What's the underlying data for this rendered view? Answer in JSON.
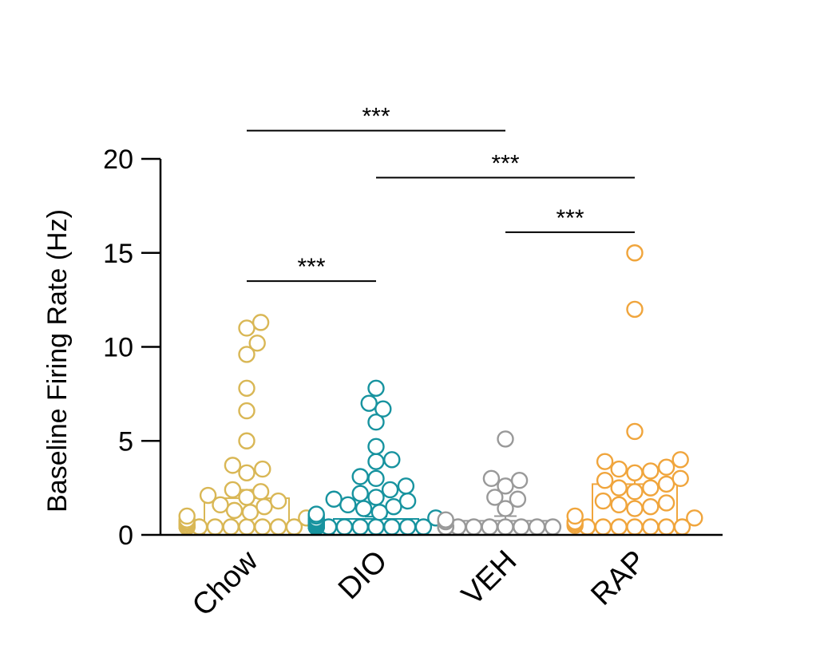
{
  "chart_data": {
    "type": "bar",
    "ylabel": "Baseline Firing Rate (Hz)",
    "ylim": [
      0,
      20
    ],
    "yticks": [
      "0",
      "5",
      "10",
      "15",
      "20"
    ],
    "categories": [
      "Chow",
      "DIO",
      "VEH",
      "RAP"
    ],
    "colors": [
      "#d9b755",
      "#17939f",
      "#999999",
      "#f0a53c"
    ],
    "means": [
      1.95,
      0.85,
      0.75,
      2.7
    ],
    "sem": [
      0.45,
      0.12,
      0.25,
      0.6
    ],
    "points": [
      [
        11.3,
        11.0,
        10.2,
        9.6,
        7.8,
        6.6,
        5.0,
        3.7,
        3.5,
        3.3,
        2.4,
        2.3,
        2.1,
        2.0,
        1.8,
        1.6,
        1.5,
        1.3,
        1.2,
        1.0,
        0.9,
        0.8,
        0.7,
        0.6,
        0.5,
        0.5,
        0.4,
        0.3,
        0.3,
        0.2,
        0.2,
        0.1,
        0.1,
        0.1,
        0.05,
        0.05,
        0.05
      ],
      [
        7.8,
        7.0,
        6.7,
        6.0,
        4.7,
        4.0,
        3.9,
        3.1,
        3.0,
        2.6,
        2.4,
        2.2,
        2.0,
        1.9,
        1.8,
        1.6,
        1.5,
        1.4,
        1.2,
        1.1,
        1.0,
        0.9,
        0.85,
        0.8,
        0.75,
        0.7,
        0.65,
        0.6,
        0.6,
        0.55,
        0.5,
        0.5,
        0.45,
        0.4,
        0.4,
        0.35,
        0.3,
        0.3,
        0.25,
        0.2,
        0.2,
        0.15,
        0.1,
        0.1,
        0.1,
        0.05,
        0.05,
        0.05,
        0.05,
        0.05,
        0.05,
        0.05,
        0.05,
        0.05,
        0.05,
        0.05,
        0.05,
        0.05,
        0.05,
        0.05
      ],
      [
        5.1,
        3.0,
        2.9,
        2.6,
        2.0,
        1.9,
        1.4,
        0.8,
        0.7,
        0.4,
        0.3,
        0.2,
        0.1,
        0.05,
        0.05,
        0.05,
        0.05,
        0.05,
        0.05,
        0.05,
        0.05,
        0.05
      ],
      [
        15.0,
        12.0,
        5.5,
        4.0,
        3.9,
        3.6,
        3.5,
        3.4,
        3.3,
        3.0,
        2.9,
        2.7,
        2.5,
        2.5,
        2.3,
        1.8,
        1.7,
        1.6,
        1.5,
        1.4,
        1.0,
        0.9,
        0.7,
        0.6,
        0.5,
        0.3,
        0.2,
        0.05,
        0.05,
        0.05,
        0.05,
        0.05
      ]
    ],
    "comparisons": [
      {
        "from": 0,
        "to": 1,
        "y": 13.5,
        "label": "***"
      },
      {
        "from": 3,
        "to": 2,
        "y": 16.1,
        "label": "***",
        "from_offset": 0,
        "to_offset": -0.05
      },
      {
        "from": 1,
        "to": 3,
        "y": 19.0,
        "label": "***"
      },
      {
        "from": 0,
        "to": 2,
        "y": 21.5,
        "label": "***"
      }
    ]
  }
}
